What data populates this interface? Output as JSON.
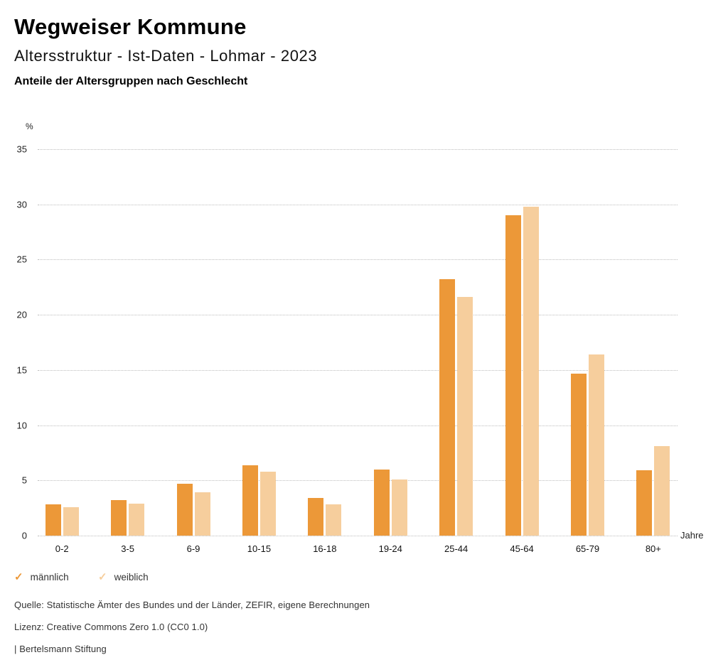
{
  "header": {
    "title": "Wegweiser Kommune",
    "subtitle": "Altersstruktur - Ist-Daten - Lohmar - 2023",
    "heading": "Anteile der Altersgruppen nach Geschlecht"
  },
  "chart_data": {
    "type": "bar",
    "title": "Anteile der Altersgruppen nach Geschlecht",
    "y_unit": "%",
    "x_unit": "Jahre",
    "categories": [
      "0-2",
      "3-5",
      "6-9",
      "10-15",
      "16-18",
      "19-24",
      "25-44",
      "45-64",
      "65-79",
      "80+"
    ],
    "series": [
      {
        "name": "männlich",
        "color": "#EC9838",
        "values": [
          2.8,
          3.2,
          4.7,
          6.4,
          3.4,
          6.0,
          23.2,
          29.0,
          14.7,
          5.9
        ]
      },
      {
        "name": "weiblich",
        "color": "#F6CE9D",
        "values": [
          2.6,
          2.9,
          3.9,
          5.8,
          2.8,
          5.1,
          21.6,
          29.8,
          16.4,
          8.1
        ]
      }
    ],
    "ylim": [
      0,
      35
    ],
    "ytick_step": 5,
    "grid": "horizontal-dotted",
    "legend_position": "bottom-left"
  },
  "legend": {
    "check_icon": "✓",
    "items": [
      {
        "label": "männlich",
        "color": "#EC9838"
      },
      {
        "label": "weiblich",
        "color": "#F6CE9D"
      }
    ]
  },
  "footer": {
    "source": "Quelle: Statistische Ämter des Bundes und der Länder, ZEFIR, eigene Berechnungen",
    "license": "Lizenz: Creative Commons Zero 1.0 (CC0 1.0)",
    "attribution": "| Bertelsmann Stiftung"
  }
}
